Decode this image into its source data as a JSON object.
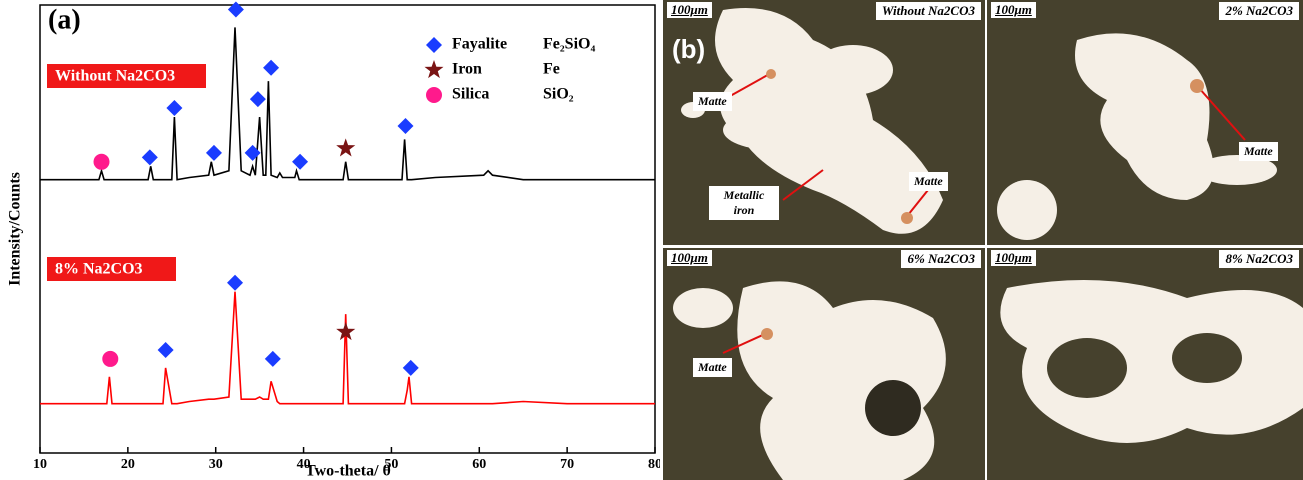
{
  "chart_data": {
    "type": "line",
    "panel_label": "(a)",
    "xlabel": "Two-theta/ θ",
    "ylabel": "Intensity/Counts",
    "xlim": [
      10,
      80
    ],
    "xticks": [
      10,
      20,
      30,
      40,
      50,
      60,
      70,
      80
    ],
    "ylim": [
      0,
      100
    ],
    "x": [
      10,
      12,
      14,
      16,
      16.7,
      17,
      17.3,
      17.6,
      17.9,
      18.2,
      20,
      22,
      22.3,
      22.6,
      22.9,
      24,
      24.3,
      25.0,
      25.3,
      25.6,
      27,
      29.2,
      29.5,
      29.8,
      31.5,
      32.2,
      32.9,
      33.9,
      34.2,
      34.5,
      35.0,
      35.4,
      35.7,
      36.0,
      36.3,
      37.0,
      37.3,
      37.6,
      39.0,
      39.2,
      39.5,
      42,
      44.5,
      44.8,
      45.1,
      48,
      51.2,
      51.5,
      51.8,
      52.0,
      52.3,
      55,
      60.5,
      61,
      61.5,
      65,
      70,
      75,
      80
    ],
    "series": [
      {
        "name": "Without Na2CO3",
        "color": "#000000",
        "values": [
          61,
          61,
          61,
          61,
          61,
          63,
          61,
          61,
          61,
          61,
          61,
          61,
          61,
          64,
          61,
          61,
          61,
          61,
          75,
          61,
          61.5,
          62,
          65,
          62,
          63,
          95,
          63,
          62,
          64,
          62,
          75,
          62,
          62,
          83,
          62,
          61.5,
          62.5,
          61.5,
          61.5,
          63,
          61,
          61,
          61,
          65,
          61,
          61,
          61,
          70,
          61,
          61,
          61,
          61.5,
          62,
          63,
          62,
          61,
          61,
          61,
          61
        ]
      },
      {
        "name": "8% Na2CO3",
        "color": "#ff0000",
        "values": [
          11,
          11,
          11,
          11,
          11,
          11,
          11,
          11,
          17,
          11,
          11,
          11,
          11,
          11,
          11,
          11,
          19,
          11,
          11,
          11,
          11.5,
          12,
          12,
          12,
          12.5,
          36,
          12,
          12,
          12,
          12,
          12.5,
          12,
          12,
          12,
          16,
          11.5,
          11,
          11,
          11,
          11,
          11,
          11,
          11,
          31,
          11,
          11,
          11,
          11,
          14,
          17,
          11,
          11,
          11,
          11,
          11,
          11.5,
          11,
          11,
          11
        ]
      }
    ],
    "phases": [
      {
        "name": "Fayalite",
        "formula": "Fe₂SiO₄",
        "color": "#1a3cff",
        "marker": "diamond",
        "x": [
          22.5,
          25.3,
          29.8,
          32.3,
          34.2,
          34.8,
          36.3,
          39.6,
          51.6,
          24.3,
          32.2,
          36.5,
          52.2
        ],
        "y": [
          66,
          77,
          67,
          99,
          67,
          79,
          86,
          65,
          73,
          23,
          38,
          21,
          19
        ]
      },
      {
        "name": "Iron",
        "formula": "Fe",
        "color": "#7a1414",
        "marker": "star",
        "x": [
          44.8,
          44.8
        ],
        "y": [
          68,
          27
        ]
      },
      {
        "name": "Silica",
        "formula": "SiO₂",
        "color": "#ff1a8c",
        "marker": "circle",
        "x": [
          17,
          18
        ],
        "y": [
          65,
          21
        ]
      }
    ]
  },
  "panel_b": {
    "label": "(b)",
    "micrographs": [
      {
        "condition": "Without Na2CO3",
        "scale": "100μm",
        "notes": [
          "Matte",
          "Metallic iron",
          "Matte"
        ]
      },
      {
        "condition": "2% Na2CO3",
        "scale": "100μm",
        "notes": [
          "Matte"
        ]
      },
      {
        "condition": "6% Na2CO3",
        "scale": "100μm",
        "notes": [
          "Matte"
        ]
      },
      {
        "condition": "8% Na2CO3",
        "scale": "100μm",
        "notes": []
      }
    ]
  }
}
